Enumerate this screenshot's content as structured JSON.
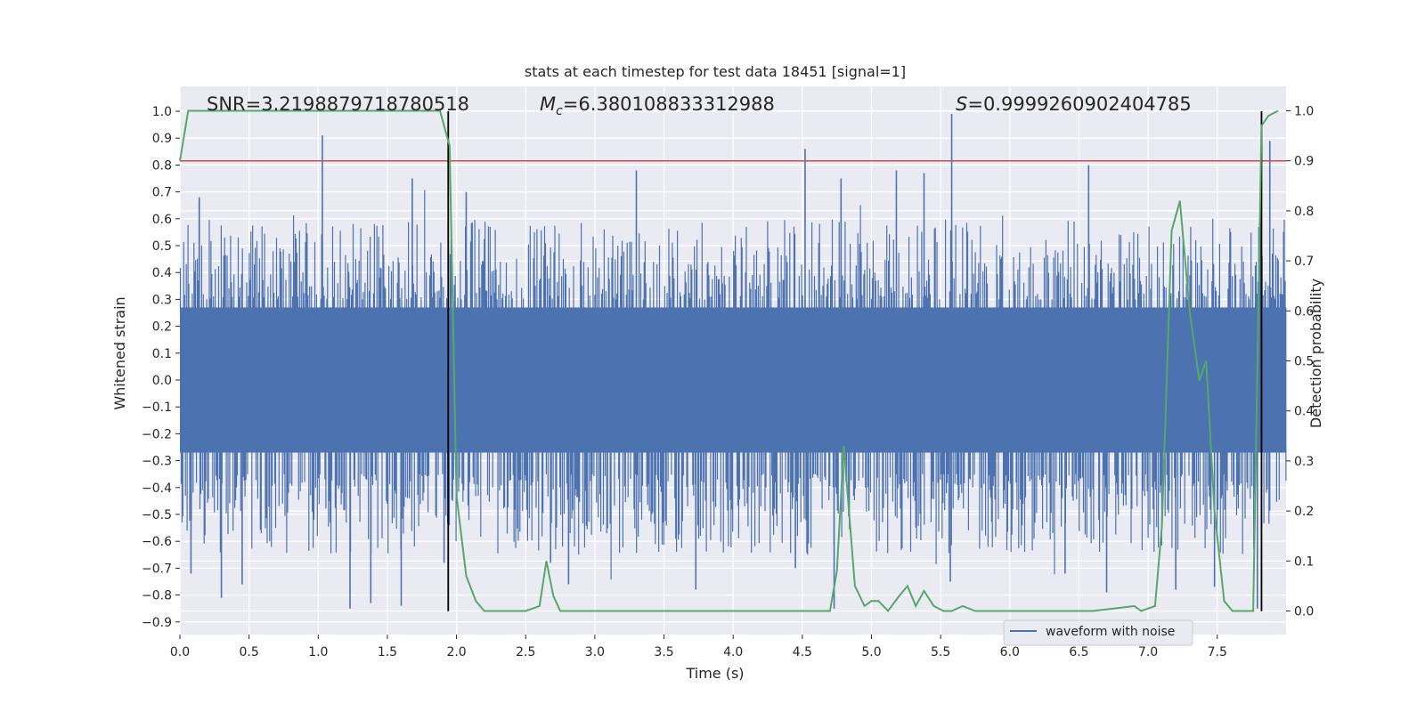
{
  "chart_data": {
    "type": "line",
    "title": "stats at each timestep for test data 18451 [signal=1]",
    "xlabel": "Time (s)",
    "ylabel": "Whitened strain",
    "y2label": "Detection probability",
    "xlim": [
      0,
      8
    ],
    "ylim": [
      -0.95,
      1.09
    ],
    "y2lim": [
      -0.05,
      1.09
    ],
    "xticks": [
      0.0,
      0.5,
      1.0,
      1.5,
      2.0,
      2.5,
      3.0,
      3.5,
      4.0,
      4.5,
      5.0,
      5.5,
      6.0,
      6.5,
      7.0,
      7.5
    ],
    "xtick_labels": [
      "0.0",
      "0.5",
      "1.0",
      "1.5",
      "2.0",
      "2.5",
      "3.0",
      "3.5",
      "4.0",
      "4.5",
      "5.0",
      "5.5",
      "6.0",
      "6.5",
      "7.0",
      "7.5"
    ],
    "yticks": [
      1.0,
      0.9,
      0.8,
      0.7,
      0.6,
      0.5,
      0.4,
      0.3,
      0.2,
      0.1,
      0.0,
      -0.1,
      -0.2,
      -0.3,
      -0.4,
      -0.5,
      -0.6,
      -0.7,
      -0.8,
      -0.9
    ],
    "ytick_labels": [
      "1.0",
      "0.9",
      "0.8",
      "0.7",
      "0.6",
      "0.5",
      "0.4",
      "0.3",
      "0.2",
      "0.1",
      "0.0",
      "−0.1",
      "−0.2",
      "−0.3",
      "−0.4",
      "−0.5",
      "−0.6",
      "−0.7",
      "−0.8",
      "−0.9"
    ],
    "y2ticks": [
      1.0,
      0.9,
      0.8,
      0.7,
      0.6,
      0.5,
      0.4,
      0.3,
      0.2,
      0.1,
      0.0
    ],
    "y2tick_labels": [
      "1.0",
      "0.9",
      "0.8",
      "0.7",
      "0.6",
      "0.5",
      "0.4",
      "0.3",
      "0.2",
      "0.1",
      "0.0"
    ],
    "grid": true,
    "annotations": {
      "snr": "SNR=3.2198879718780518",
      "mc_symbol": "M",
      "mc_sub": "c",
      "mc_value": "=6.380108833312988",
      "s_symbol": "S",
      "s_value": "=0.9999260902404785"
    },
    "legend": {
      "label": "waveform with noise",
      "position": "lower-right"
    },
    "threshold": {
      "axis": "right",
      "value": 0.9,
      "color": "#c44e52"
    },
    "vlines": [
      1.94,
      7.82
    ],
    "vline_range": [
      -0.86,
      1.0
    ],
    "waveform": {
      "name": "waveform with noise",
      "color": "#4c72b0",
      "core_amplitude": 0.27,
      "typical_peak_range": [
        0.3,
        0.6
      ],
      "spikes": [
        {
          "x": 1.03,
          "y": 0.91
        },
        {
          "x": 5.58,
          "y": 0.99
        },
        {
          "x": 4.52,
          "y": 0.86
        },
        {
          "x": 7.88,
          "y": 0.89
        },
        {
          "x": 3.3,
          "y": 0.78
        },
        {
          "x": 6.57,
          "y": 0.8
        },
        {
          "x": 1.68,
          "y": 0.75
        },
        {
          "x": 2.07,
          "y": 0.7
        },
        {
          "x": 4.78,
          "y": 0.75
        },
        {
          "x": 0.14,
          "y": 0.68
        },
        {
          "x": 5.38,
          "y": 0.77
        },
        {
          "x": 5.18,
          "y": 0.78
        },
        {
          "x": 1.23,
          "y": -0.85
        },
        {
          "x": 1.38,
          "y": -0.83
        },
        {
          "x": 1.6,
          "y": -0.84
        },
        {
          "x": 7.79,
          "y": -0.85
        },
        {
          "x": 4.73,
          "y": -0.85
        },
        {
          "x": 0.3,
          "y": -0.81
        },
        {
          "x": 3.73,
          "y": -0.78
        },
        {
          "x": 6.7,
          "y": -0.79
        },
        {
          "x": 7.2,
          "y": -0.78
        },
        {
          "x": 5.57,
          "y": -0.75
        },
        {
          "x": 2.81,
          "y": -0.76
        },
        {
          "x": 0.08,
          "y": -0.72
        },
        {
          "x": 1.91,
          "y": -0.68
        },
        {
          "x": 2.68,
          "y": -0.68
        },
        {
          "x": 4.45,
          "y": -0.7
        },
        {
          "x": 7.48,
          "y": -0.77
        },
        {
          "x": 0.45,
          "y": -0.76
        },
        {
          "x": 6.4,
          "y": -0.72
        }
      ]
    },
    "probability": {
      "name": "detection probability",
      "color": "#55a868",
      "x": [
        0.0,
        0.06,
        0.15,
        0.3,
        0.5,
        0.7,
        0.9,
        1.1,
        1.3,
        1.5,
        1.7,
        1.88,
        1.95,
        2.0,
        2.07,
        2.14,
        2.2,
        2.3,
        2.5,
        2.6,
        2.65,
        2.7,
        2.75,
        2.83,
        3.0,
        3.2,
        3.5,
        3.7,
        4.0,
        4.3,
        4.5,
        4.7,
        4.75,
        4.8,
        4.88,
        4.95,
        5.0,
        5.05,
        5.12,
        5.2,
        5.26,
        5.32,
        5.38,
        5.45,
        5.52,
        5.58,
        5.66,
        5.75,
        5.85,
        6.0,
        6.3,
        6.6,
        6.9,
        6.95,
        7.05,
        7.1,
        7.17,
        7.23,
        7.3,
        7.37,
        7.42,
        7.48,
        7.55,
        7.61,
        7.69,
        7.76,
        7.82,
        7.87,
        7.94
      ],
      "y": [
        0.9,
        1.0,
        1.0,
        1.0,
        1.0,
        1.0,
        1.0,
        1.0,
        1.0,
        1.0,
        1.0,
        1.0,
        0.93,
        0.23,
        0.07,
        0.02,
        0.0,
        0.0,
        0.0,
        0.01,
        0.1,
        0.03,
        0.0,
        0.0,
        0.0,
        0.0,
        0.0,
        0.0,
        0.0,
        0.0,
        0.0,
        0.0,
        0.08,
        0.33,
        0.05,
        0.01,
        0.02,
        0.02,
        0.0,
        0.03,
        0.05,
        0.01,
        0.04,
        0.01,
        0.0,
        0.0,
        0.01,
        0.0,
        0.0,
        0.0,
        0.0,
        0.0,
        0.01,
        0.0,
        0.01,
        0.17,
        0.76,
        0.82,
        0.6,
        0.46,
        0.5,
        0.2,
        0.02,
        0.0,
        0.0,
        0.0,
        0.97,
        0.99,
        1.0
      ]
    }
  }
}
